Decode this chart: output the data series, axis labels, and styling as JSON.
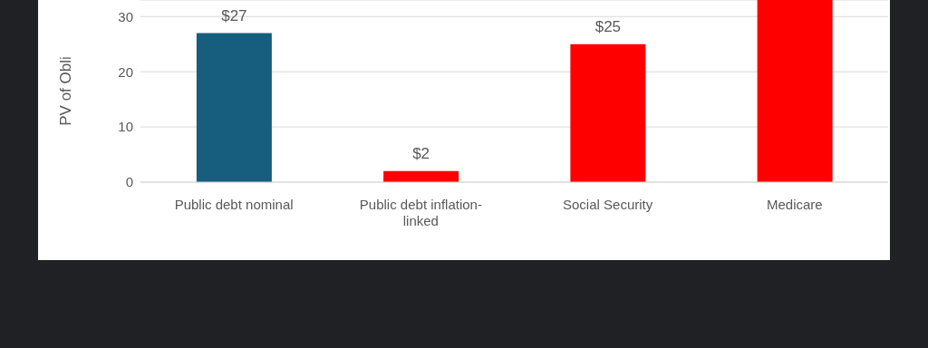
{
  "chart_data": {
    "type": "bar",
    "ylabel": "PV of Obli",
    "categories": [
      "Public debt nominal",
      "Public debt inflation-linked",
      "Social Security",
      "Medicare"
    ],
    "values": [
      27,
      2,
      25,
      33
    ],
    "colors": [
      "#175e7e",
      "#ff0000",
      "#ff0000",
      "#ff0000"
    ],
    "value_labels": [
      "$27",
      "$2",
      "$25",
      null
    ],
    "ylim": [
      0,
      33
    ],
    "yticks": [
      0,
      10,
      20,
      30
    ],
    "grid": "y"
  }
}
